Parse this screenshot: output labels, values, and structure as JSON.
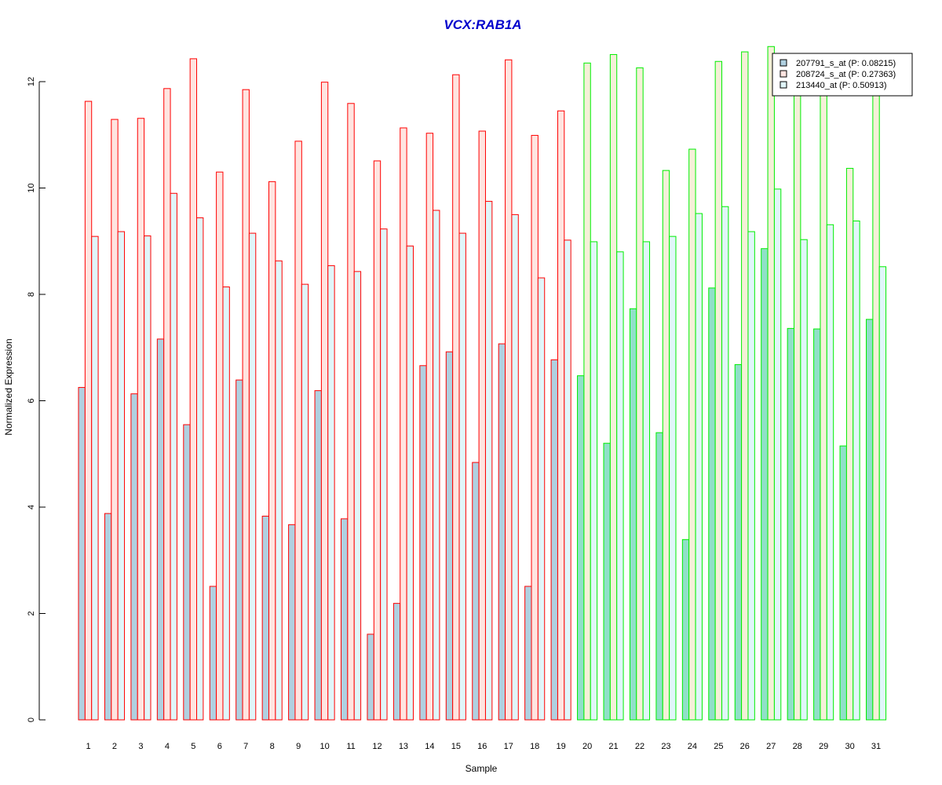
{
  "chart_data": {
    "type": "bar",
    "title": "VCX:RAB1A",
    "xlabel": "Sample",
    "ylabel": "Normalized Expression",
    "ylim": [
      0,
      12.8
    ],
    "yticks": [
      0,
      2,
      4,
      6,
      8,
      10,
      12
    ],
    "categories": [
      "1",
      "2",
      "3",
      "4",
      "5",
      "6",
      "7",
      "8",
      "9",
      "10",
      "11",
      "12",
      "13",
      "14",
      "15",
      "16",
      "17",
      "18",
      "19",
      "20",
      "21",
      "22",
      "23",
      "24",
      "25",
      "26",
      "27",
      "28",
      "29",
      "30",
      "31"
    ],
    "group_a_count": 19,
    "group_colors": {
      "group_a_border": "#ff0000",
      "group_b_border": "#00ee00"
    },
    "legend_position": "top-right",
    "series": [
      {
        "name": "207791_s_at (P: 0.08215)",
        "fill_a": "#b0d0e0",
        "fill_b": "#90e0c8",
        "values": [
          6.25,
          3.88,
          6.13,
          7.16,
          5.55,
          2.51,
          6.39,
          3.83,
          3.67,
          6.19,
          3.78,
          1.61,
          2.19,
          6.66,
          6.92,
          4.84,
          7.07,
          2.51,
          6.77,
          6.47,
          5.2,
          7.73,
          5.4,
          3.39,
          8.12,
          6.68,
          8.86,
          7.36,
          7.35,
          5.15,
          7.53
        ]
      },
      {
        "name": "208724_s_at (P: 0.27363)",
        "fill_a": "#ffe4e0",
        "fill_b": "#f5f0d8",
        "values": [
          11.63,
          11.29,
          11.31,
          11.87,
          12.43,
          10.3,
          11.85,
          10.12,
          10.88,
          11.99,
          11.59,
          10.51,
          11.13,
          11.03,
          12.13,
          11.07,
          12.41,
          10.99,
          11.45,
          12.35,
          12.51,
          12.26,
          10.33,
          10.73,
          12.38,
          12.56,
          12.66,
          11.86,
          11.91,
          10.37,
          11.83
        ]
      },
      {
        "name": "213440_at (P: 0.50913)",
        "fill_a": "#e0f6fa",
        "fill_b": "#e0f6fa",
        "values": [
          9.09,
          9.18,
          9.1,
          9.9,
          9.44,
          8.14,
          9.15,
          8.63,
          8.19,
          8.54,
          8.43,
          9.23,
          8.91,
          9.58,
          9.15,
          9.75,
          9.5,
          8.31,
          9.02,
          8.99,
          8.8,
          8.99,
          9.09,
          9.52,
          9.65,
          9.18,
          9.98,
          9.03,
          9.31,
          9.38,
          8.52
        ]
      }
    ],
    "legend_fills": [
      "#b0d0e0",
      "#ffe4e0",
      "#e0f6fa"
    ]
  }
}
